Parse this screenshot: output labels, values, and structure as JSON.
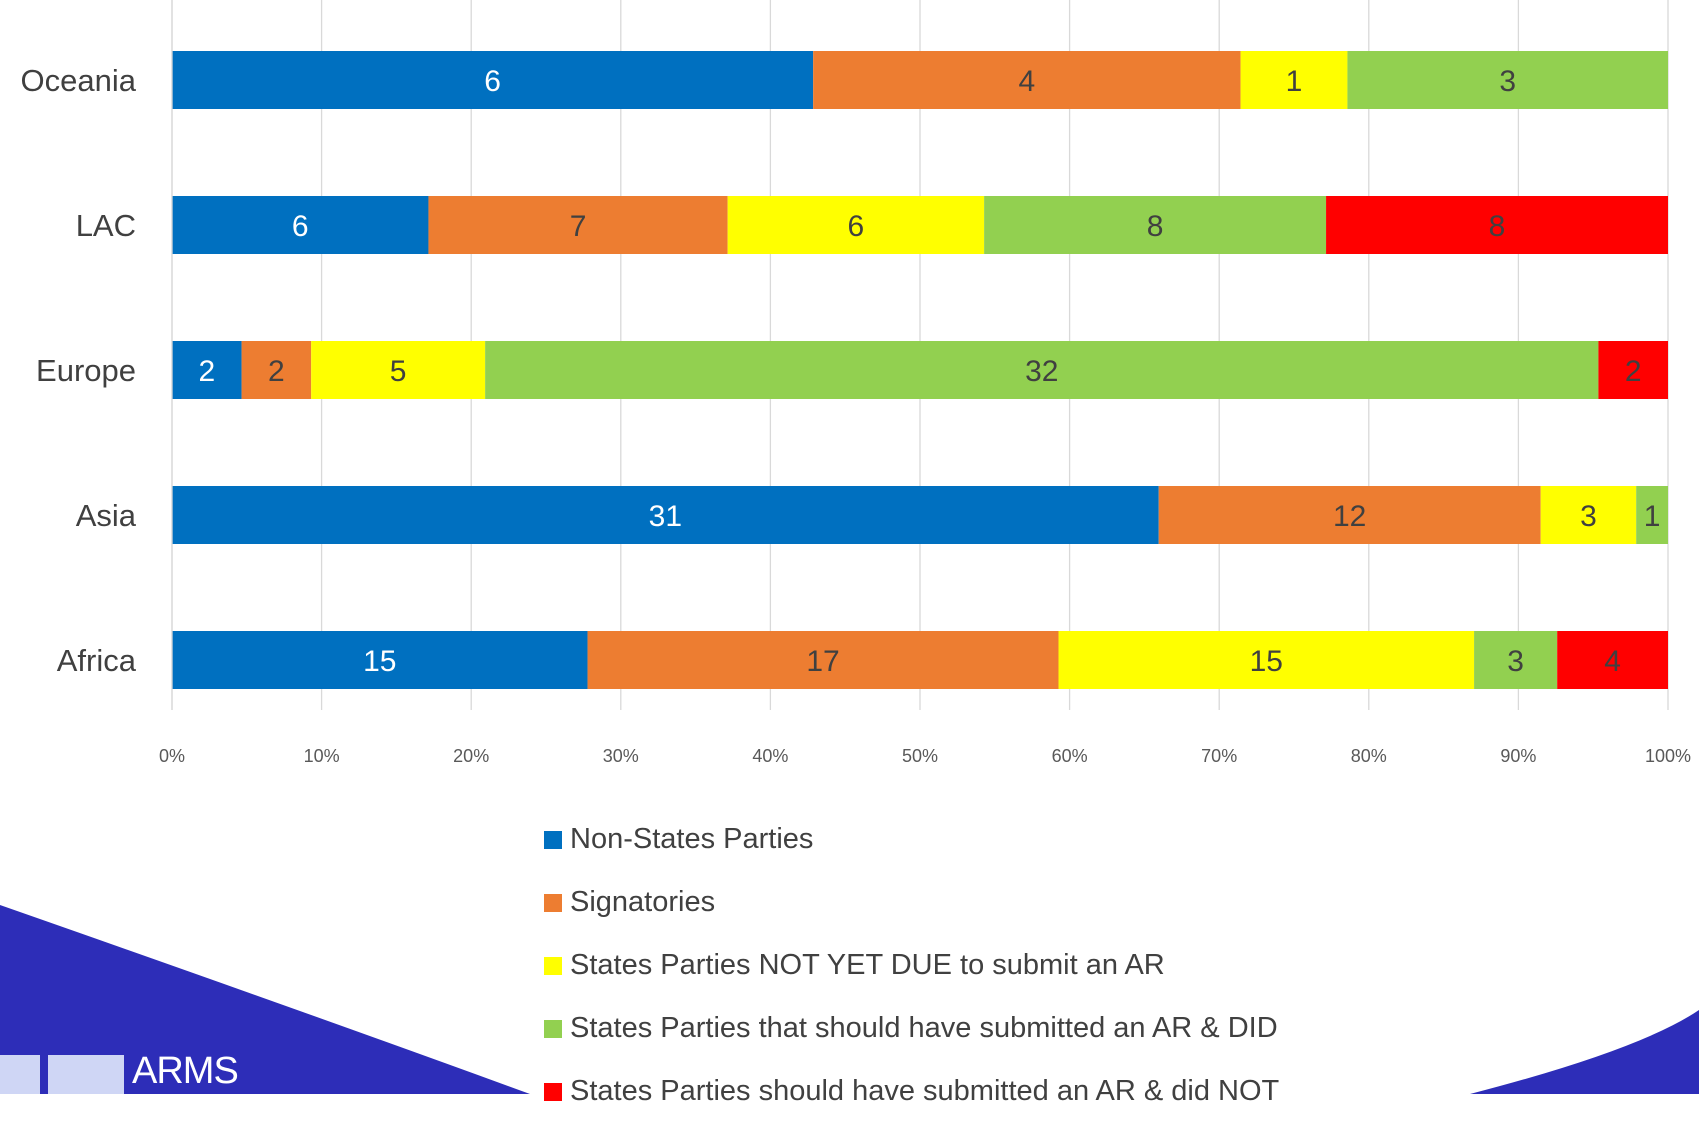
{
  "chart_data": {
    "type": "bar",
    "orientation": "horizontal",
    "stacked": "percent",
    "categories": [
      "Oceania",
      "LAC",
      "Europe",
      "Asia",
      "Africa"
    ],
    "series": [
      {
        "name": "Non-States Parties",
        "color": "#0070c0",
        "values": [
          6,
          6,
          2,
          31,
          15
        ]
      },
      {
        "name": "Signatories",
        "color": "#ed7d31",
        "values": [
          4,
          7,
          2,
          12,
          17
        ]
      },
      {
        "name": "States Parties NOT YET DUE to submit an AR",
        "color": "#ffff00",
        "values": [
          1,
          6,
          5,
          3,
          15
        ]
      },
      {
        "name": "States Parties that should have submitted an AR & DID",
        "color": "#92d050",
        "values": [
          3,
          8,
          32,
          1,
          3
        ]
      },
      {
        "name": "States Parties should have submitted an AR & did NOT",
        "color": "#ff0000",
        "values": [
          0,
          8,
          2,
          0,
          4
        ]
      }
    ],
    "xlim": [
      0,
      1
    ],
    "xticks": [
      "0%",
      "10%",
      "20%",
      "30%",
      "40%",
      "50%",
      "60%",
      "70%",
      "80%",
      "90%",
      "100%"
    ],
    "grid": true,
    "legend_position": "bottom"
  },
  "logo": {
    "text": "ARMS"
  }
}
